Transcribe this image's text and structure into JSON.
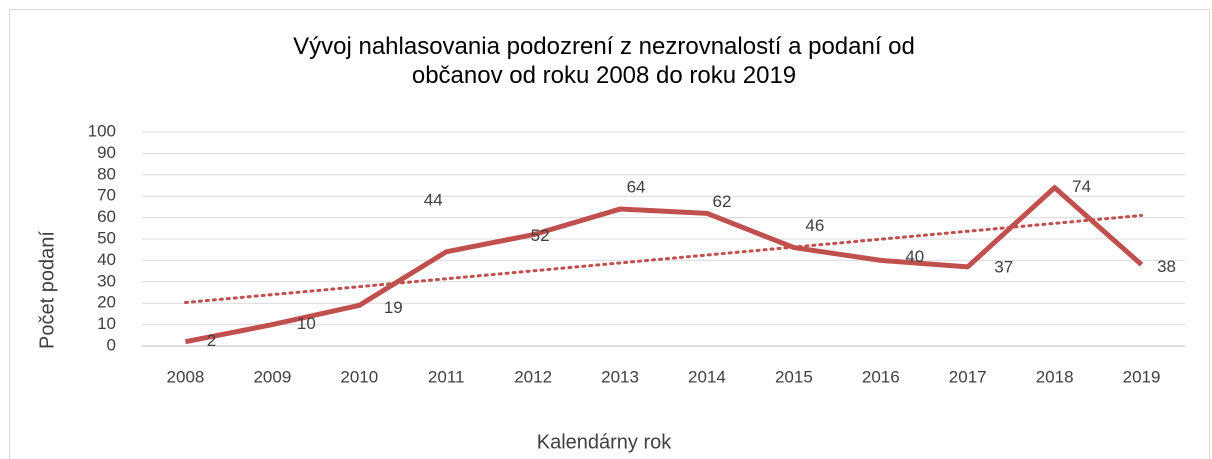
{
  "chart_data": {
    "type": "line",
    "title": "Vývoj nahlasovania podozrení z nezrovnalostí a podaní od občanov od roku 2008 do roku 2019",
    "xlabel": "Kalendárny rok",
    "ylabel": "Počet podaní",
    "categories": [
      "2008",
      "2009",
      "2010",
      "2011",
      "2012",
      "2013",
      "2014",
      "2015",
      "2016",
      "2017",
      "2018",
      "2019"
    ],
    "series": [
      {
        "name": "Počet podaní",
        "color": "#c0504d",
        "values": [
          2,
          10,
          19,
          44,
          52,
          64,
          62,
          46,
          40,
          37,
          74,
          38
        ]
      }
    ],
    "trendline": "linear",
    "ylim": [
      0,
      100
    ],
    "yticks": [
      0,
      10,
      20,
      30,
      40,
      50,
      60,
      70,
      80,
      90,
      100
    ],
    "grid": true
  }
}
